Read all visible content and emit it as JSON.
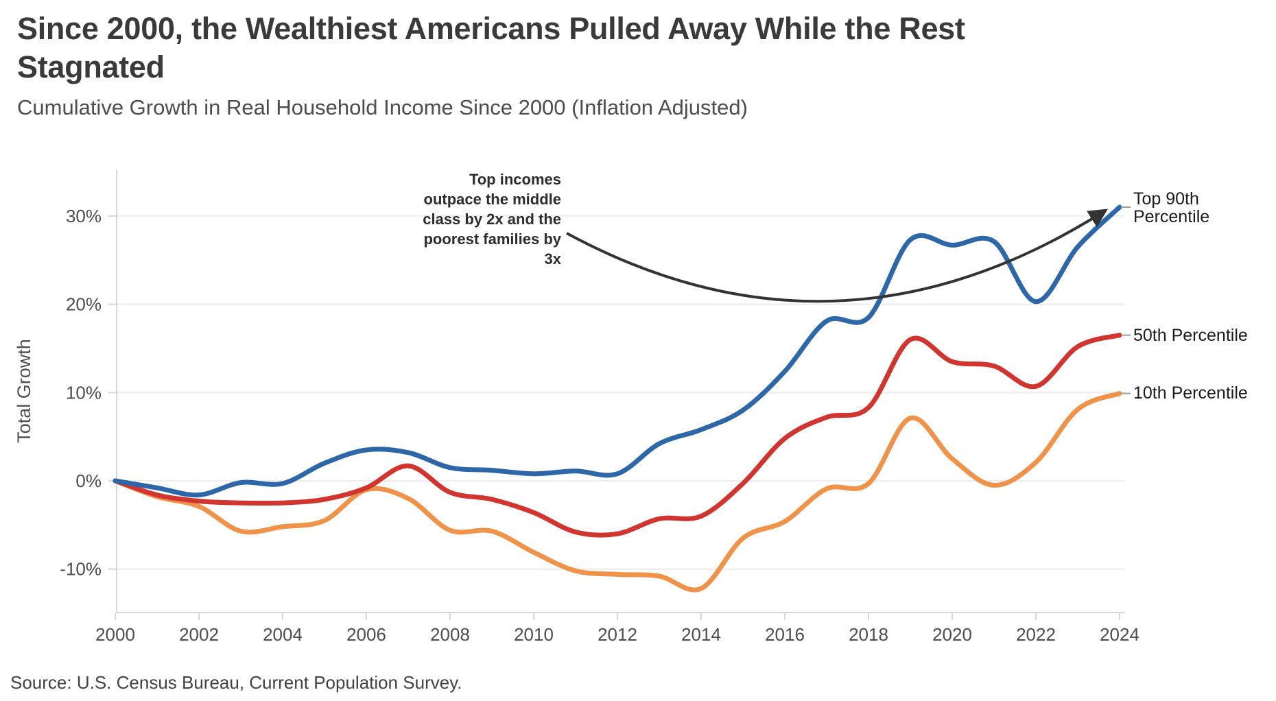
{
  "header": {
    "title_line1": "Since 2000, the Wealthiest Americans Pulled Away While the Rest",
    "title_line2": "Stagnated",
    "subtitle": "Cumulative Growth in Real Household Income Since 2000 (Inflation Adjusted)"
  },
  "chart_data": {
    "type": "line",
    "title": "Since 2000, the Wealthiest Americans Pulled Away While the Rest Stagnated",
    "subtitle": "Cumulative Growth in Real Household Income Since 2000 (Inflation Adjusted)",
    "xlabel": "",
    "ylabel": "Total Growth",
    "ylim": [
      -13,
      32
    ],
    "grid": "horizontal",
    "legend_position": "right-edge-labels",
    "x": [
      2000,
      2001,
      2002,
      2003,
      2004,
      2005,
      2006,
      2007,
      2008,
      2009,
      2010,
      2011,
      2012,
      2013,
      2014,
      2015,
      2016,
      2017,
      2018,
      2019,
      2020,
      2021,
      2022,
      2023,
      2024
    ],
    "x_tick_labels": [
      "2000",
      "2002",
      "2004",
      "2006",
      "2008",
      "2010",
      "2012",
      "2014",
      "2016",
      "2018",
      "2020",
      "2022",
      "2024"
    ],
    "y_tick_values": [
      30,
      20,
      10,
      0,
      -10
    ],
    "y_tick_labels": [
      "30%",
      "20%",
      "10%",
      "0%",
      "-10%"
    ],
    "series": [
      {
        "name": "10th Percentile",
        "color": "#ee9349",
        "values": [
          0,
          -1.8,
          -2.9,
          -5.7,
          -5.2,
          -4.5,
          -1.0,
          -2.0,
          -5.6,
          -5.7,
          -8.1,
          -10.2,
          -10.6,
          -10.8,
          -12.2,
          -6.5,
          -4.6,
          -0.9,
          -0.3,
          7.1,
          2.5,
          -0.5,
          2.1,
          8.1,
          9.9
        ]
      },
      {
        "name": "50th Percentile",
        "color": "#d13530",
        "values": [
          0,
          -1.6,
          -2.3,
          -2.5,
          -2.5,
          -2.1,
          -0.8,
          1.7,
          -1.3,
          -2.1,
          -3.6,
          -5.8,
          -6.0,
          -4.3,
          -4.0,
          -0.3,
          4.8,
          7.2,
          8.3,
          16.0,
          13.5,
          13.0,
          10.7,
          15.2,
          16.5
        ]
      },
      {
        "name": "Top 90th Percentile",
        "color": "#2d67a8",
        "values": [
          0,
          -0.8,
          -1.6,
          -0.2,
          -0.3,
          2.0,
          3.5,
          3.2,
          1.5,
          1.2,
          0.8,
          1.1,
          0.8,
          4.2,
          5.8,
          8.0,
          12.4,
          18.1,
          18.5,
          27.3,
          26.7,
          27.1,
          20.3,
          26.5,
          31.0
        ]
      }
    ],
    "annotation": {
      "text": "Top incomes outpace the middle class by 2x and the poorest families by 3x",
      "lines": [
        "Top incomes",
        "outpace the middle",
        "class by 2x and the",
        "poorest families by",
        "3x"
      ],
      "arrow_points_to": "Top 90th Percentile line end at 2024 (~31%)"
    }
  },
  "right_labels": {
    "top90_line1": "Top 90th",
    "top90_line2": "Percentile",
    "p50": "50th Percentile",
    "p10": "10th Percentile"
  },
  "source": "Source: U.S. Census Bureau, Current Population Survey.",
  "colors": {
    "top90": "#2d67a8",
    "p50": "#d13530",
    "p10": "#ee9349",
    "annotation_arrow": "#333333",
    "gridline": "#ececec",
    "axis": "#d6d6d6",
    "leader_tick": "#9b9b9b",
    "tick_text": "#4d4d4d"
  }
}
